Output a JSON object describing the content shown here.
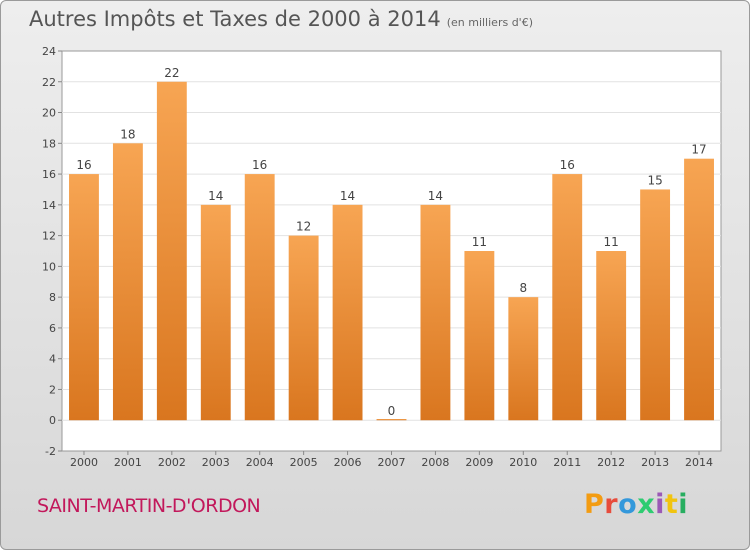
{
  "header": {
    "title": "Autres Impôts et Taxes de 2000 à 2014",
    "unit": "(en milliers d'€)"
  },
  "footer": {
    "commune": "SAINT-MARTIN-D'ORDON",
    "logo": "Proxiti",
    "logo_colors": [
      "#f39c12",
      "#e74c3c",
      "#3498db",
      "#2ecc71",
      "#9b59b6",
      "#f1c40f",
      "#27ae60"
    ]
  },
  "chart_data": {
    "type": "bar",
    "title": "Autres Impôts et Taxes de 2000 à 2014",
    "subtitle": "(en milliers d'€)",
    "categories": [
      "2000",
      "2001",
      "2002",
      "2003",
      "2004",
      "2005",
      "2006",
      "2007",
      "2008",
      "2009",
      "2010",
      "2011",
      "2012",
      "2013",
      "2014"
    ],
    "values": [
      16,
      18,
      22,
      14,
      16,
      12,
      14,
      0,
      14,
      11,
      8,
      16,
      11,
      15,
      17
    ],
    "ylim": [
      -2,
      24
    ],
    "yticks": [
      -2,
      0,
      2,
      4,
      6,
      8,
      10,
      12,
      14,
      16,
      18,
      20,
      22,
      24
    ],
    "grid": true,
    "bar_color_top": "#f7a553",
    "bar_color_bottom": "#d9761f"
  }
}
